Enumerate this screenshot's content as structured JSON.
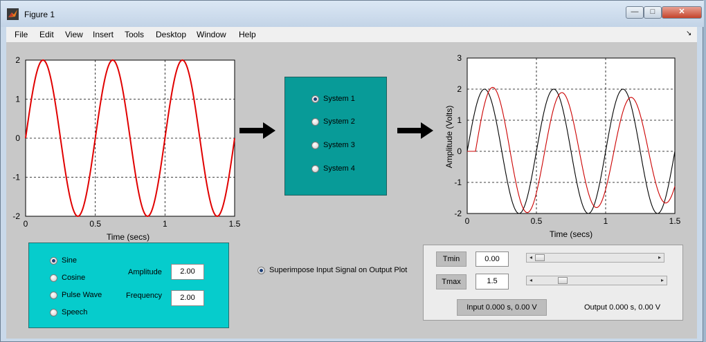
{
  "window": {
    "title": "Figure 1",
    "close_glyph": "✕",
    "min_glyph": "—",
    "max_glyph": "□"
  },
  "menu": [
    "File",
    "Edit",
    "View",
    "Insert",
    "Tools",
    "Desktop",
    "Window",
    "Help"
  ],
  "menu_arrow": "↘",
  "left_plot": {
    "xlabel": "Time (secs)",
    "xticks": [
      "0",
      "0.5",
      "1",
      "1.5"
    ],
    "yticks": [
      "2",
      "1",
      "0",
      "-1",
      "-2"
    ]
  },
  "right_plot": {
    "xlabel": "Time (secs)",
    "ylabel": "Amplitude (Volts)",
    "xticks": [
      "0",
      "0.5",
      "1",
      "1.5"
    ],
    "yticks": [
      "3",
      "2",
      "1",
      "0",
      "-1",
      "-2"
    ]
  },
  "systems": {
    "options": [
      "System 1",
      "System 2",
      "System 3",
      "System 4"
    ],
    "selected": 0
  },
  "signal_panel": {
    "options": [
      "Sine",
      "Cosine",
      "Pulse Wave",
      "Speech"
    ],
    "selected": 0,
    "amplitude_label": "Amplitude",
    "amplitude_value": "2.00",
    "frequency_label": "Frequency",
    "frequency_value": "2.00"
  },
  "superimpose": {
    "label": "Superimpose Input Signal on Output Plot",
    "checked": true
  },
  "time_panel": {
    "tmin_label": "Tmin",
    "tmin_value": "0.00",
    "tmax_label": "Tmax",
    "tmax_value": "1.5",
    "input_readout": "Input 0.000 s, 0.00 V",
    "output_readout": "Output 0.000 s, 0.00 V",
    "tmin_slider_fraction": 0.0,
    "tmax_slider_fraction": 0.2
  },
  "chart_data": [
    {
      "type": "line",
      "xlabel": "Time (secs)",
      "ylabel": "",
      "xlim": [
        0,
        1.5
      ],
      "ylim": [
        -2,
        2
      ],
      "grid": true,
      "series": [
        {
          "function": "sine",
          "amplitude": 2,
          "frequency": 2,
          "phase_shift": 0,
          "damping": 0,
          "color": "#e00000"
        }
      ]
    },
    {
      "type": "line",
      "xlabel": "Time (secs)",
      "ylabel": "Amplitude (Volts)",
      "xlim": [
        0,
        1.5
      ],
      "ylim": [
        -2,
        3
      ],
      "grid": true,
      "series": [
        {
          "function": "sine",
          "amplitude": 2,
          "frequency": 2,
          "phase_shift": 0,
          "damping": 0,
          "color": "#000000"
        },
        {
          "function": "sine",
          "amplitude": 2.1,
          "frequency": 2,
          "phase_shift": 0.06,
          "damping": 0.17,
          "color": "#cc0000"
        }
      ]
    }
  ],
  "colors": {
    "signal_panel_bg": "#06cccc",
    "system_panel_bg": "#089b98",
    "figure_bg": "#c8c8c8"
  }
}
